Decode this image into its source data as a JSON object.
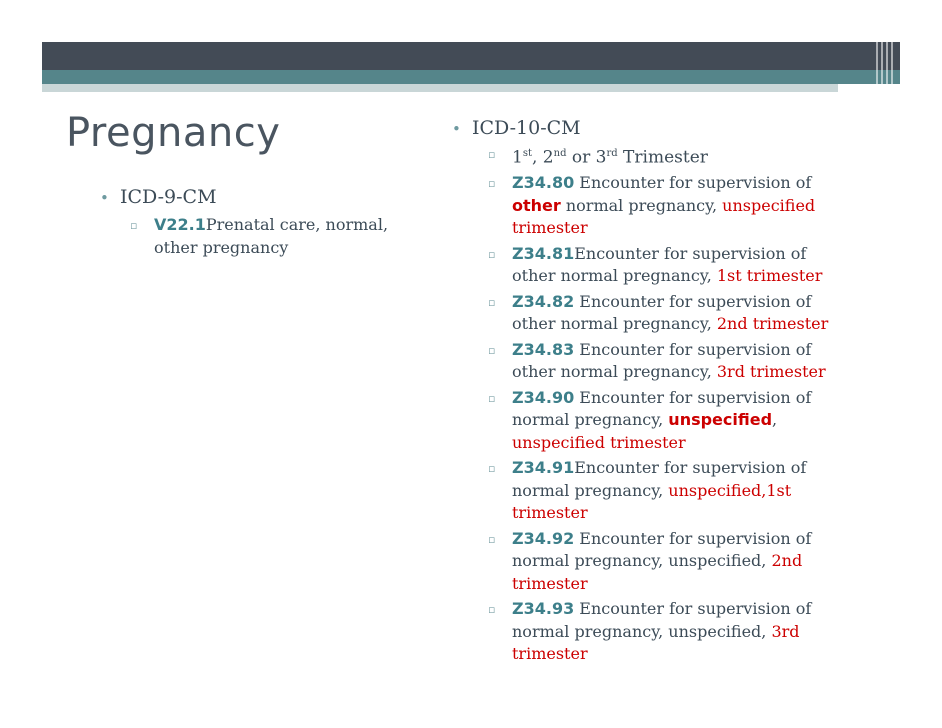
{
  "slide": {
    "title": "Pregnancy",
    "left": {
      "heading": "ICD-9-CM",
      "item": {
        "code": "V22.1",
        "text": "Prenatal care, normal, other pregnancy"
      }
    },
    "right": {
      "heading": "ICD-10-CM",
      "trimester_line": {
        "n1": "1",
        "s1": "st",
        "sep1": ", ",
        "n2": "2",
        "s2": "nd",
        "sep2": " or ",
        "n3": "3",
        "s3": "rd",
        "tail": " Trimester"
      },
      "items": [
        {
          "code": "Z34.80",
          "t1": " Encounter for supervision of ",
          "em": "other",
          "t2": " normal pregnancy, ",
          "red": "unspecified trimester"
        },
        {
          "code": "Z34.81",
          "t1": "Encounter for supervision of other normal pregnancy, ",
          "red": "1st trimester"
        },
        {
          "code": "Z34.82",
          "t1": " Encounter for supervision of other normal pregnancy, ",
          "red": "2nd trimester"
        },
        {
          "code": "Z34.83",
          "t1": " Encounter for supervision of other normal pregnancy, ",
          "red": "3rd trimester"
        },
        {
          "code": "Z34.90",
          "t1": " Encounter for supervision of normal pregnancy, ",
          "em": "unspecified",
          "t2": ", ",
          "red": "unspecified trimester"
        },
        {
          "code": "Z34.91",
          "t1": "Encounter for supervision of normal pregnancy, ",
          "red": "unspecified,1st trimester"
        },
        {
          "code": "Z34.92",
          "t1": " Encounter for supervision of normal pregnancy, unspecified, ",
          "red": "2nd trimester"
        },
        {
          "code": "Z34.93",
          "t1": " Encounter for supervision of normal pregnancy, unspecified, ",
          "red": "3rd trimester"
        }
      ]
    }
  }
}
